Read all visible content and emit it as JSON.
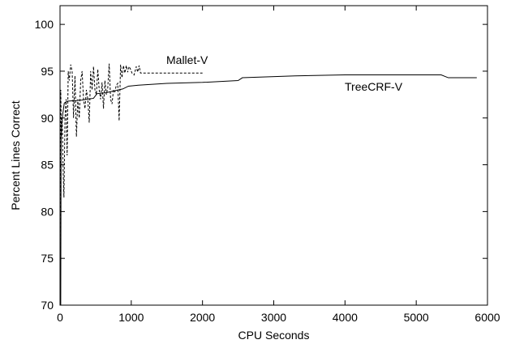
{
  "chart_data": {
    "type": "line",
    "title": "",
    "xlabel": "CPU Seconds",
    "ylabel": "Percent Lines Correct",
    "xlim": [
      0,
      6000
    ],
    "ylim": [
      70,
      102
    ],
    "xticks": [
      0,
      1000,
      2000,
      3000,
      4000,
      5000,
      6000
    ],
    "yticks": [
      70,
      75,
      80,
      85,
      90,
      95,
      100
    ],
    "grid": false,
    "legend": "inline labels",
    "series": [
      {
        "name": "TreeCRF-V",
        "line_style": "solid",
        "color": "#000000",
        "points": [
          [
            0,
            70
          ],
          [
            10,
            70
          ],
          [
            15,
            88
          ],
          [
            25,
            89.5
          ],
          [
            40,
            90.5
          ],
          [
            60,
            91.6
          ],
          [
            100,
            91.8
          ],
          [
            300,
            91.9
          ],
          [
            380,
            92.0
          ],
          [
            470,
            92.1
          ],
          [
            520,
            92.6
          ],
          [
            650,
            92.7
          ],
          [
            760,
            92.9
          ],
          [
            880,
            93.1
          ],
          [
            960,
            93.4
          ],
          [
            1100,
            93.5
          ],
          [
            1500,
            93.7
          ],
          [
            2000,
            93.8
          ],
          [
            2500,
            94.0
          ],
          [
            2560,
            94.3
          ],
          [
            3300,
            94.5
          ],
          [
            4000,
            94.6
          ],
          [
            5350,
            94.6
          ],
          [
            5450,
            94.3
          ],
          [
            5850,
            94.3
          ]
        ]
      },
      {
        "name": "Mallet-V",
        "line_style": "dashed",
        "color": "#000000",
        "points": [
          [
            0,
            70
          ],
          [
            10,
            93
          ],
          [
            20,
            88
          ],
          [
            30,
            90
          ],
          [
            45,
            84
          ],
          [
            55,
            81.5
          ],
          [
            70,
            90
          ],
          [
            85,
            92
          ],
          [
            100,
            86
          ],
          [
            115,
            95
          ],
          [
            130,
            94
          ],
          [
            150,
            95.7
          ],
          [
            170,
            95
          ],
          [
            190,
            90
          ],
          [
            210,
            94.5
          ],
          [
            230,
            88
          ],
          [
            250,
            92
          ],
          [
            270,
            90
          ],
          [
            290,
            94
          ],
          [
            310,
            95
          ],
          [
            330,
            92
          ],
          [
            350,
            91
          ],
          [
            370,
            93
          ],
          [
            390,
            92
          ],
          [
            410,
            89.5
          ],
          [
            430,
            95
          ],
          [
            450,
            93
          ],
          [
            470,
            95.5
          ],
          [
            490,
            93
          ],
          [
            510,
            92.5
          ],
          [
            530,
            95.2
          ],
          [
            550,
            93
          ],
          [
            570,
            92
          ],
          [
            590,
            93.8
          ],
          [
            610,
            91
          ],
          [
            630,
            94
          ],
          [
            650,
            92.5
          ],
          [
            670,
            93.2
          ],
          [
            690,
            95.8
          ],
          [
            710,
            92
          ],
          [
            730,
            91.5
          ],
          [
            750,
            93
          ],
          [
            770,
            92.8
          ],
          [
            790,
            93.5
          ],
          [
            810,
            93.7
          ],
          [
            830,
            89.7
          ],
          [
            850,
            95.7
          ],
          [
            870,
            94.3
          ],
          [
            890,
            95.6
          ],
          [
            910,
            94.8
          ],
          [
            930,
            95.6
          ],
          [
            950,
            94.9
          ],
          [
            970,
            95.5
          ],
          [
            990,
            95.2
          ],
          [
            1010,
            94.8
          ],
          [
            1040,
            94.6
          ],
          [
            1070,
            95.5
          ],
          [
            1090,
            94.9
          ],
          [
            1110,
            95.6
          ],
          [
            1130,
            94.8
          ],
          [
            2000,
            94.8
          ]
        ]
      }
    ]
  },
  "labels": {
    "mallet": "Mallet-V",
    "treecrf": "TreeCRF-V"
  }
}
